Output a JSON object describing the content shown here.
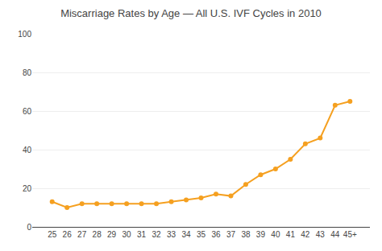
{
  "chart_data": {
    "type": "line",
    "title": "Miscarriage Rates by Age — All U.S. IVF Cycles in 2010",
    "categories": [
      "25",
      "26",
      "27",
      "28",
      "29",
      "30",
      "31",
      "32",
      "33",
      "34",
      "35",
      "36",
      "37",
      "38",
      "39",
      "40",
      "41",
      "42",
      "43",
      "44",
      "45+"
    ],
    "values": [
      13,
      10,
      12,
      12,
      12,
      12,
      12,
      12,
      13,
      14,
      15,
      17,
      16,
      22,
      27,
      30,
      35,
      43,
      46,
      63,
      65
    ],
    "color": "#f5a020",
    "marker": "circle",
    "ylim": [
      0,
      100
    ],
    "yticks": [
      0,
      20,
      40,
      60,
      80,
      100
    ],
    "grid": true
  }
}
